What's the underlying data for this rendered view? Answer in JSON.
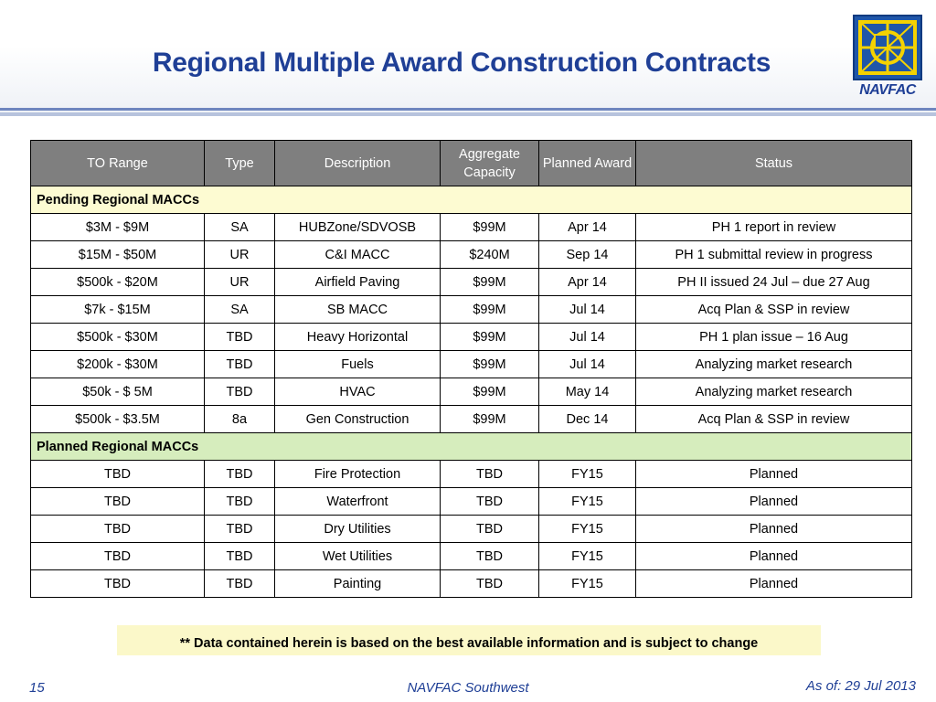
{
  "title": "Regional Multiple Award Construction Contracts",
  "logo": {
    "text": "NAVFAC",
    "colors": {
      "box": "#1f56a8",
      "frame": "#f5d200"
    }
  },
  "table": {
    "headers": [
      "TO Range",
      "Type",
      "Description",
      "Aggregate Capacity",
      "Planned Award",
      "Status"
    ],
    "sections": [
      {
        "label": "Pending Regional MACCs",
        "rows": [
          [
            "$3M - $9M",
            "SA",
            "HUBZone/SDVOSB",
            "$99M",
            "Apr 14",
            "PH 1 report in review"
          ],
          [
            "$15M - $50M",
            "UR",
            "C&I MACC",
            "$240M",
            "Sep 14",
            "PH 1 submittal review in progress"
          ],
          [
            "$500k - $20M",
            "UR",
            "Airfield Paving",
            "$99M",
            "Apr 14",
            "PH  II issued 24 Jul – due 27 Aug"
          ],
          [
            "$7k - $15M",
            "SA",
            "SB MACC",
            "$99M",
            "Jul 14",
            "Acq Plan & SSP in review"
          ],
          [
            "$500k - $30M",
            "TBD",
            "Heavy Horizontal",
            "$99M",
            "Jul 14",
            "PH 1 plan issue – 16 Aug"
          ],
          [
            "$200k - $30M",
            "TBD",
            "Fuels",
            "$99M",
            "Jul 14",
            "Analyzing market research"
          ],
          [
            "$50k - $ 5M",
            "TBD",
            "HVAC",
            "$99M",
            "May 14",
            "Analyzing market research"
          ],
          [
            "$500k - $3.5M",
            "8a",
            "Gen Construction",
            "$99M",
            "Dec 14",
            "Acq Plan & SSP in review"
          ]
        ]
      },
      {
        "label": "Planned Regional MACCs",
        "rows": [
          [
            "TBD",
            "TBD",
            "Fire Protection",
            "TBD",
            "FY15",
            "Planned"
          ],
          [
            "TBD",
            "TBD",
            "Waterfront",
            "TBD",
            "FY15",
            "Planned"
          ],
          [
            "TBD",
            "TBD",
            "Dry Utilities",
            "TBD",
            "FY15",
            "Planned"
          ],
          [
            "TBD",
            "TBD",
            "Wet Utilities",
            "TBD",
            "FY15",
            "Planned"
          ],
          [
            "TBD",
            "TBD",
            "Painting",
            "TBD",
            "FY15",
            "Planned"
          ]
        ]
      }
    ]
  },
  "note": "** Data contained herein is based on the best available information and is subject to change",
  "footer": {
    "page_number": "15",
    "center": "NAVFAC Southwest",
    "as_of": "As of: 29 Jul 2013"
  }
}
